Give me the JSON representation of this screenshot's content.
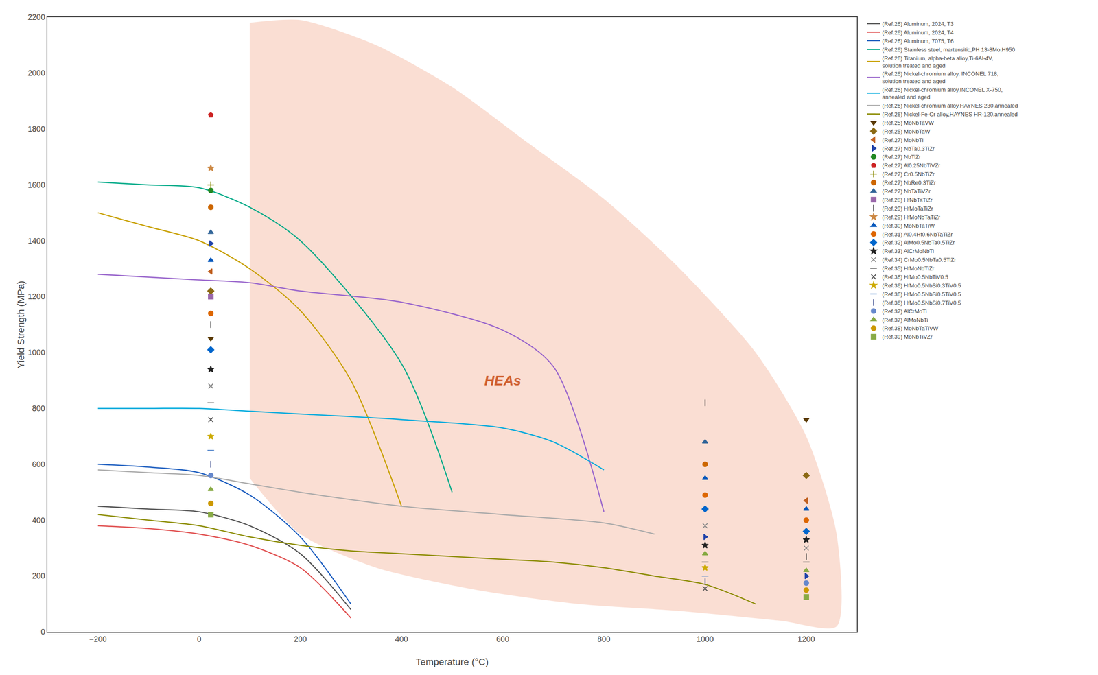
{
  "chart_data": {
    "type": "line",
    "xlabel": "Temperature (°C)",
    "ylabel": "Yield Strength (MPa)",
    "xlim": [
      -300,
      1300
    ],
    "ylim": [
      0,
      2200
    ],
    "xticks": [
      {
        "value": -200,
        "label": "−200"
      },
      0,
      200,
      400,
      600,
      800,
      1000,
      1200
    ],
    "yticks": [
      0,
      200,
      400,
      600,
      800,
      1000,
      1200,
      1400,
      1600,
      1800,
      2000,
      2200
    ],
    "grid": false,
    "legend": "right",
    "hea_region": {
      "color": "#f0a080",
      "upper_x": [
        100,
        200,
        350,
        500,
        650,
        800,
        950,
        1100,
        1200,
        1260
      ],
      "upper_y": [
        2180,
        2190,
        2100,
        1950,
        1750,
        1550,
        1300,
        1000,
        700,
        350
      ],
      "lower_x": [
        100,
        200,
        350,
        550,
        750,
        950,
        1150,
        1260
      ],
      "lower_y": [
        550,
        350,
        230,
        150,
        100,
        75,
        40,
        20
      ]
    },
    "annotations": [
      {
        "text": "HEAs",
        "x": 600,
        "y": 900,
        "color": "#d06030"
      }
    ],
    "series": [
      {
        "name": "(Ref.26) Aluminum, 2024, T3",
        "type": "line",
        "color": "#555555",
        "x": [
          -200,
          -100,
          0,
          100,
          200,
          300
        ],
        "values": [
          450,
          440,
          430,
          380,
          280,
          80
        ]
      },
      {
        "name": "(Ref.26) Aluminum, 2024, T4",
        "type": "line",
        "color": "#e05050",
        "x": [
          -200,
          -100,
          0,
          100,
          200,
          300
        ],
        "values": [
          380,
          370,
          350,
          310,
          230,
          50
        ]
      },
      {
        "name": "(Ref.26) Aluminum, 7075, T6",
        "type": "line",
        "color": "#2060c0",
        "x": [
          -200,
          -100,
          0,
          100,
          200,
          300
        ],
        "values": [
          600,
          590,
          570,
          490,
          340,
          100
        ]
      },
      {
        "name": "(Ref.26) Stainless steel, martensitic,PH 13-8Mo,H950",
        "type": "line",
        "color": "#00aa88",
        "x": [
          -200,
          -100,
          0,
          100,
          200,
          400,
          500
        ],
        "values": [
          1610,
          1600,
          1590,
          1520,
          1400,
          960,
          500
        ]
      },
      {
        "name": "(Ref.26) Titanium, alpha-beta alloy,Ti-6Al-4V,\nsolution treated and aged",
        "type": "line",
        "color": "#c8a000",
        "x": [
          -200,
          -100,
          0,
          100,
          200,
          300,
          400
        ],
        "values": [
          1500,
          1450,
          1400,
          1300,
          1150,
          900,
          450
        ]
      },
      {
        "name": "(Ref.26) Nickel-chromium alloy, INCONEL 718,\nsolution treated and aged",
        "type": "line",
        "color": "#9966cc",
        "x": [
          -200,
          -100,
          0,
          100,
          200,
          400,
          600,
          700,
          800
        ],
        "values": [
          1280,
          1270,
          1260,
          1250,
          1220,
          1180,
          1080,
          950,
          430
        ]
      },
      {
        "name": "(Ref.26) Nickel-chromium alloy,INCONEL X-750,\nannealed and aged",
        "type": "line",
        "color": "#00aadd",
        "x": [
          -200,
          -100,
          0,
          100,
          200,
          400,
          600,
          700,
          800
        ],
        "values": [
          800,
          800,
          800,
          790,
          780,
          760,
          730,
          680,
          580
        ]
      },
      {
        "name": "(Ref.26) Nickel-chromium alloy,HAYNES 230,annealed",
        "type": "line",
        "color": "#aaaaaa",
        "x": [
          -200,
          -100,
          0,
          100,
          200,
          400,
          600,
          800,
          900
        ],
        "values": [
          580,
          570,
          560,
          530,
          500,
          450,
          420,
          390,
          350
        ]
      },
      {
        "name": "(Ref.26) Nickel-Fe-Cr alloy,HAYNES HR-120,annealed",
        "type": "line",
        "color": "#8b8b00",
        "x": [
          -200,
          -100,
          0,
          100,
          200,
          300,
          400,
          500,
          600,
          700,
          800,
          900,
          1000,
          1100
        ],
        "values": [
          420,
          400,
          380,
          340,
          310,
          290,
          280,
          270,
          260,
          250,
          230,
          200,
          170,
          100
        ]
      },
      {
        "name": "(Ref.25) MoNbTaVW",
        "type": "scatter",
        "marker": "triangle-down",
        "color": "#5a3a00",
        "x": [
          23,
          1200
        ],
        "values": [
          1050,
          760
        ]
      },
      {
        "name": "(Ref.25) MoNbTaW",
        "type": "scatter",
        "marker": "diamond",
        "color": "#8b6914",
        "x": [
          23,
          1200
        ],
        "values": [
          1220,
          560
        ]
      },
      {
        "name": "(Ref.27) MoNbTi",
        "type": "scatter",
        "marker": "triangle-left",
        "color": "#c06020",
        "x": [
          23,
          1200
        ],
        "values": [
          1290,
          470
        ]
      },
      {
        "name": "(Ref.27) NbTa0.3TiZr",
        "type": "scatter",
        "marker": "triangle-right",
        "color": "#2244aa",
        "x": [
          23,
          1000,
          1200
        ],
        "values": [
          1390,
          340,
          200
        ]
      },
      {
        "name": "(Ref.27) NbTiZr",
        "type": "scatter",
        "marker": "circle",
        "color": "#228822",
        "x": [
          23
        ],
        "values": [
          1580
        ]
      },
      {
        "name": "(Ref.27) Al0.25NbTiVZr",
        "type": "scatter",
        "marker": "pentagon",
        "color": "#cc2222",
        "x": [
          23
        ],
        "values": [
          1850
        ]
      },
      {
        "name": "(Ref.27) Cr0.5NbTiZr",
        "type": "scatter",
        "marker": "cross-thin-open",
        "color": "#888800",
        "x": [
          23
        ],
        "values": [
          1600
        ]
      },
      {
        "name": "(Ref.27) NbRe0.3TiZr",
        "type": "scatter",
        "marker": "circle",
        "color": "#cc6600",
        "x": [
          23,
          1000
        ],
        "values": [
          1520,
          600
        ]
      },
      {
        "name": "(Ref.27) NbTaTiVZr",
        "type": "scatter",
        "marker": "triangle-up",
        "color": "#336699",
        "x": [
          23,
          1000
        ],
        "values": [
          1430,
          680
        ]
      },
      {
        "name": "(Ref.28) HfNbTaTiZr",
        "type": "scatter",
        "marker": "square",
        "color": "#9966aa",
        "x": [
          23
        ],
        "values": [
          1200
        ]
      },
      {
        "name": "(Ref.29) HfMoTaTiZr",
        "type": "scatter",
        "marker": "line-ns-open",
        "color": "#333333",
        "x": [
          23,
          1000,
          1200
        ],
        "values": [
          1100,
          820,
          270
        ]
      },
      {
        "name": "(Ref.29) HfMoNbTaTiZr",
        "type": "scatter",
        "marker": "star",
        "color": "#cc8844",
        "x": [
          23
        ],
        "values": [
          1660
        ]
      },
      {
        "name": "(Ref.30) MoNbTaTiW",
        "type": "scatter",
        "marker": "triangle-up",
        "color": "#0055bb",
        "x": [
          23,
          1000,
          1200
        ],
        "values": [
          1330,
          550,
          440
        ]
      },
      {
        "name": "(Ref.31) Al0.4Hf0.6NbTaTiZr",
        "type": "scatter",
        "marker": "circle",
        "color": "#dd6600",
        "x": [
          23,
          1000,
          1200
        ],
        "values": [
          1140,
          490,
          400
        ]
      },
      {
        "name": "(Ref.32) AlMo0.5NbTa0.5TiZr",
        "type": "scatter",
        "marker": "diamond",
        "color": "#0066cc",
        "x": [
          23,
          1000,
          1200
        ],
        "values": [
          1010,
          440,
          360
        ]
      },
      {
        "name": "(Ref.33) AlCrMoNbTi",
        "type": "scatter",
        "marker": "star",
        "color": "#222222",
        "x": [
          23,
          1000,
          1200
        ],
        "values": [
          940,
          310,
          330
        ]
      },
      {
        "name": "(Ref.34) CrMo0.5NbTa0.5TiZr",
        "type": "scatter",
        "marker": "x-thin-open",
        "color": "#888888",
        "x": [
          23,
          1000,
          1200
        ],
        "values": [
          880,
          380,
          300
        ]
      },
      {
        "name": "(Ref.35) HfMoNbTiZr",
        "type": "scatter",
        "marker": "line-ew-open",
        "color": "#555555",
        "x": [
          23,
          1000,
          1200
        ],
        "values": [
          820,
          250,
          250
        ]
      },
      {
        "name": "(Ref.36) HfMo0.5NbTiV0.5",
        "type": "scatter",
        "marker": "x-thin-open",
        "color": "#555555",
        "x": [
          23,
          1000
        ],
        "values": [
          760,
          155
        ]
      },
      {
        "name": "(Ref.36) HfMo0.5NbSi0.3TiV0.5",
        "type": "scatter",
        "marker": "star",
        "color": "#ccaa00",
        "x": [
          23,
          1000
        ],
        "values": [
          700,
          230
        ]
      },
      {
        "name": "(Ref.36) HfMo0.5NbSi0.5TiV0.5",
        "type": "scatter",
        "marker": "line-ew-open",
        "color": "#5588cc",
        "x": [
          23,
          1000
        ],
        "values": [
          650,
          200
        ]
      },
      {
        "name": "(Ref.36) HfMo0.5NbSi0.7TiV0.5",
        "type": "scatter",
        "marker": "line-ns-open",
        "color": "#334488",
        "x": [
          23,
          1000
        ],
        "values": [
          600,
          180
        ]
      },
      {
        "name": "(Ref.37) AlCrMoTi",
        "type": "scatter",
        "marker": "circle",
        "color": "#6688cc",
        "x": [
          23,
          1200
        ],
        "values": [
          560,
          175
        ]
      },
      {
        "name": "(Ref.37) AlMoNbTi",
        "type": "scatter",
        "marker": "triangle-up",
        "color": "#88aa44",
        "x": [
          23,
          1000,
          1200
        ],
        "values": [
          510,
          280,
          220
        ]
      },
      {
        "name": "(Ref.38) MoNbTaTiVW",
        "type": "scatter",
        "marker": "circle",
        "color": "#cc9900",
        "x": [
          23,
          1200
        ],
        "values": [
          460,
          150
        ]
      },
      {
        "name": "(Ref.39) MoNbTiVZr",
        "type": "scatter",
        "marker": "square",
        "color": "#88aa44",
        "x": [
          23,
          1200
        ],
        "values": [
          420,
          125
        ]
      }
    ]
  }
}
